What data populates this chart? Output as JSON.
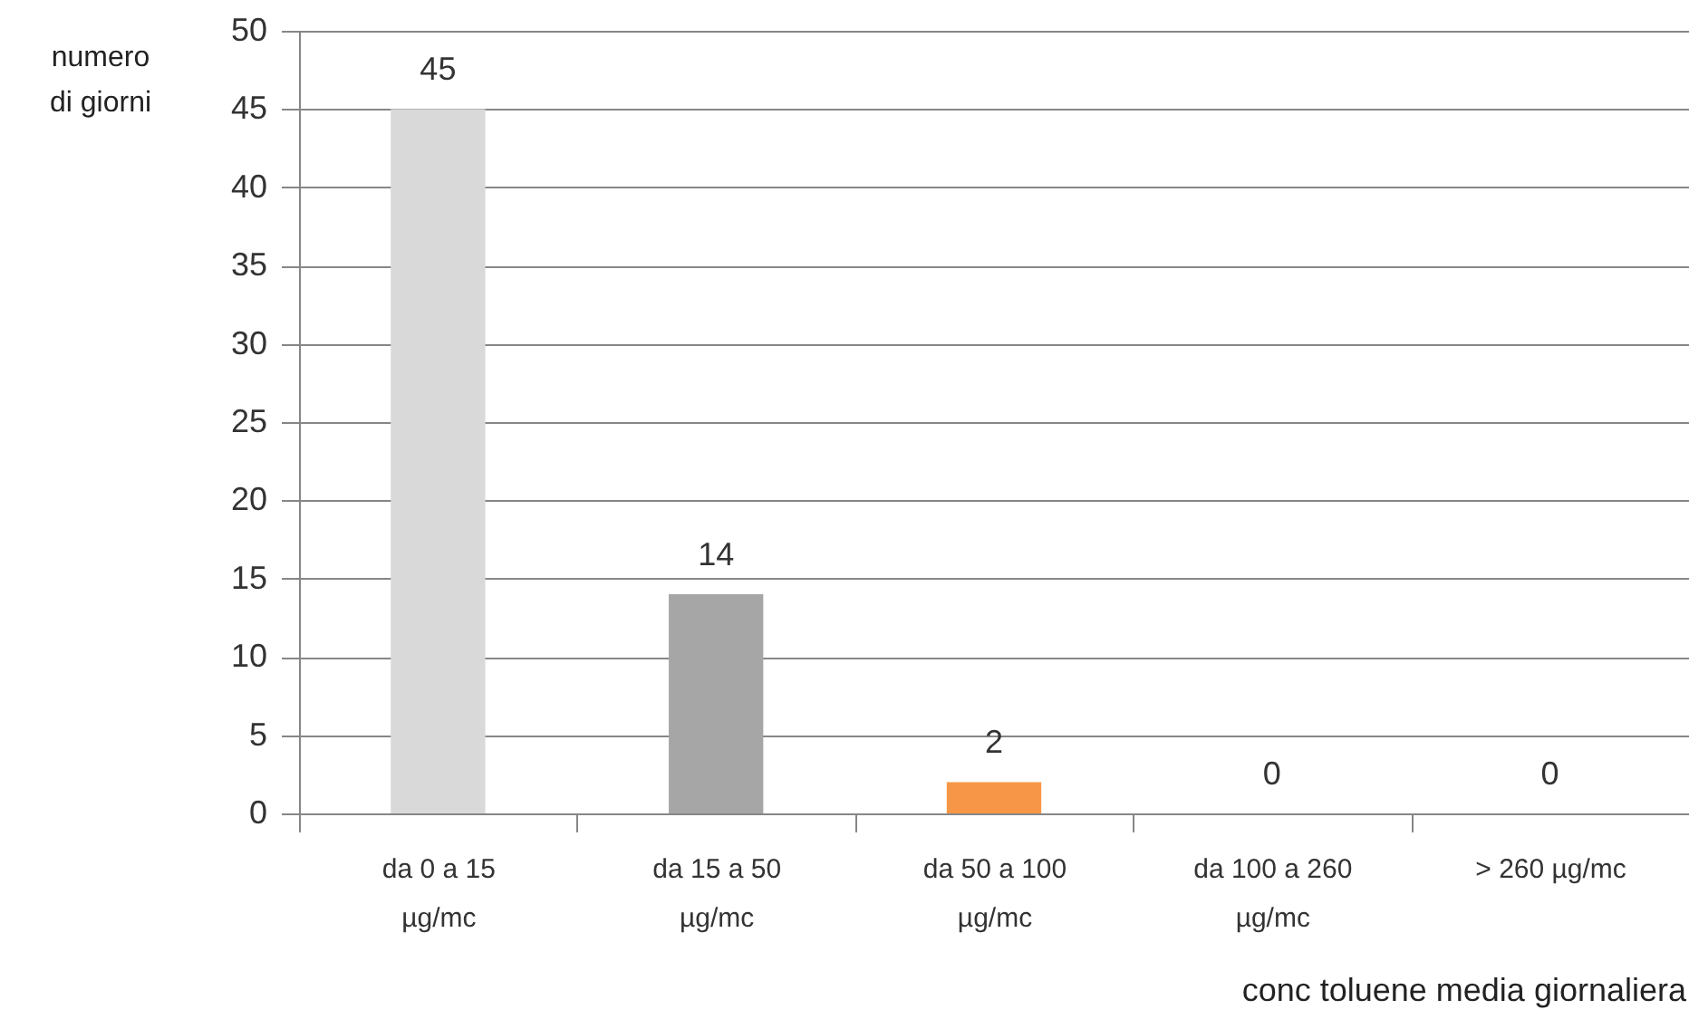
{
  "chart_data": {
    "type": "bar",
    "categories": [
      "da 0 a 15 µg/mc",
      "da 15 a 50 µg/mc",
      "da 50 a 100 µg/mc",
      "da 100 a 260 µg/mc",
      "> 260 µg/mc"
    ],
    "values": [
      45,
      14,
      2,
      0,
      0
    ],
    "colors": [
      "#d9d9d9",
      "#a6a6a6",
      "#f79646",
      null,
      null
    ],
    "ylim": [
      0,
      50
    ],
    "yticks": [
      0,
      5,
      10,
      15,
      20,
      25,
      30,
      35,
      40,
      45,
      50
    ],
    "ylabel": "numero di giorni",
    "xlabel": "conc toluene media giornaliera",
    "data_labels": true,
    "grid": "y"
  }
}
